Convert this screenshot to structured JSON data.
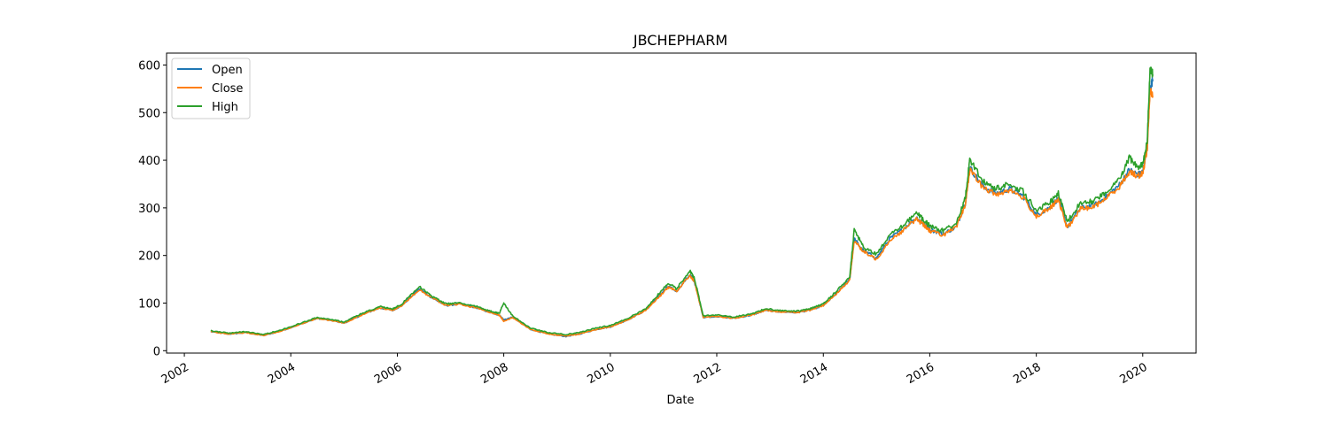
{
  "chart_data": {
    "type": "line",
    "title": "JBCHEPHARM",
    "xlabel": "Date",
    "ylabel": "",
    "xlim": [
      "2001-09-01",
      "2021-01-01"
    ],
    "ylim": [
      -5,
      625
    ],
    "x_ticks": [
      "2002-01-01",
      "2004-01-01",
      "2006-01-01",
      "2008-01-01",
      "2010-01-01",
      "2012-01-01",
      "2014-01-01",
      "2016-01-01",
      "2018-01-01",
      "2020-01-01"
    ],
    "x_tick_labels": [
      "2002",
      "2004",
      "2006",
      "2008",
      "2010",
      "2012",
      "2014",
      "2016",
      "2018",
      "2020"
    ],
    "y_ticks": [
      0,
      100,
      200,
      300,
      400,
      500,
      600
    ],
    "y_tick_labels": [
      "0",
      "100",
      "200",
      "300",
      "400",
      "500",
      "600"
    ],
    "grid": false,
    "legend_position": "top-left",
    "x": [
      "2002-07-01",
      "2002-11-01",
      "2003-03-01",
      "2003-07-01",
      "2003-11-01",
      "2004-03-01",
      "2004-07-01",
      "2004-11-01",
      "2005-01-01",
      "2005-05-01",
      "2005-09-01",
      "2005-12-01",
      "2006-02-01",
      "2006-06-01",
      "2006-09-01",
      "2006-12-01",
      "2007-03-01",
      "2007-07-01",
      "2007-10-01",
      "2007-12-01",
      "2008-01-01",
      "2008-03-01",
      "2008-07-01",
      "2008-11-01",
      "2009-03-01",
      "2009-06-01",
      "2009-10-01",
      "2010-01-01",
      "2010-05-01",
      "2010-09-01",
      "2010-12-01",
      "2011-02-01",
      "2011-04-01",
      "2011-07-01",
      "2011-08-01",
      "2011-10-01",
      "2012-01-01",
      "2012-05-01",
      "2012-09-01",
      "2012-12-01",
      "2013-03-01",
      "2013-07-01",
      "2013-10-01",
      "2014-01-01",
      "2014-04-01",
      "2014-07-01",
      "2014-08-01",
      "2014-10-01",
      "2015-01-01",
      "2015-04-01",
      "2015-07-01",
      "2015-10-01",
      "2015-12-01",
      "2016-01-01",
      "2016-04-01",
      "2016-07-01",
      "2016-09-01",
      "2016-10-01",
      "2017-01-01",
      "2017-04-01",
      "2017-07-01",
      "2017-10-01",
      "2018-01-01",
      "2018-04-01",
      "2018-06-01",
      "2018-08-01",
      "2018-11-01",
      "2019-02-01",
      "2019-05-01",
      "2019-08-01",
      "2019-10-01",
      "2019-12-01",
      "2020-01-01",
      "2020-02-01",
      "2020-02-20",
      "2020-03-10"
    ],
    "series": [
      {
        "name": "Open",
        "color": "#1f77b4",
        "values": [
          40,
          35,
          38,
          32,
          42,
          55,
          68,
          62,
          58,
          75,
          90,
          85,
          95,
          130,
          110,
          95,
          98,
          90,
          80,
          75,
          65,
          70,
          45,
          35,
          30,
          35,
          45,
          50,
          65,
          85,
          115,
          135,
          125,
          160,
          145,
          70,
          72,
          68,
          75,
          85,
          82,
          80,
          85,
          95,
          120,
          150,
          235,
          210,
          195,
          235,
          255,
          280,
          265,
          255,
          245,
          260,
          310,
          385,
          345,
          330,
          340,
          325,
          285,
          300,
          320,
          260,
          300,
          305,
          325,
          350,
          380,
          370,
          375,
          430,
          550,
          570
        ]
      },
      {
        "name": "Close",
        "color": "#ff7f0e",
        "values": [
          40,
          35,
          38,
          32,
          42,
          55,
          68,
          62,
          58,
          75,
          90,
          85,
          95,
          128,
          110,
          95,
          98,
          90,
          80,
          75,
          62,
          70,
          45,
          35,
          31,
          35,
          45,
          50,
          65,
          85,
          113,
          133,
          125,
          158,
          145,
          70,
          72,
          68,
          75,
          85,
          82,
          80,
          85,
          95,
          120,
          148,
          232,
          208,
          192,
          232,
          252,
          277,
          262,
          252,
          243,
          258,
          307,
          380,
          342,
          328,
          338,
          322,
          282,
          298,
          317,
          257,
          298,
          302,
          322,
          347,
          376,
          367,
          372,
          425,
          545,
          535
        ]
      },
      {
        "name": "High",
        "color": "#2ca02c",
        "values": [
          42,
          37,
          40,
          34,
          44,
          57,
          70,
          64,
          60,
          78,
          93,
          88,
          98,
          135,
          113,
          98,
          101,
          93,
          83,
          78,
          100,
          73,
          48,
          38,
          34,
          38,
          48,
          53,
          68,
          88,
          120,
          142,
          130,
          168,
          152,
          73,
          75,
          71,
          78,
          88,
          85,
          83,
          88,
          98,
          125,
          155,
          255,
          218,
          202,
          242,
          262,
          290,
          272,
          262,
          252,
          268,
          320,
          402,
          355,
          340,
          350,
          335,
          295,
          310,
          330,
          270,
          312,
          315,
          335,
          362,
          405,
          385,
          390,
          440,
          598,
          580
        ]
      }
    ]
  }
}
